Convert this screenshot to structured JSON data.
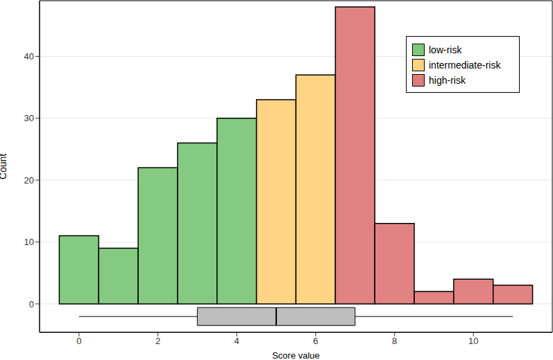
{
  "chart_data": {
    "type": "histogram",
    "xlabel": "Score value",
    "ylabel": "Count",
    "bins": [
      -0.5,
      0.5,
      1.5,
      2.5,
      3.5,
      4.5,
      5.5,
      6.5,
      7.5,
      8.5,
      9.5,
      10.5,
      11.5
    ],
    "series": [
      {
        "name": "low-risk",
        "color": "#7dc87a",
        "values": [
          11,
          9,
          22,
          26,
          30,
          null,
          null,
          null,
          null,
          null,
          null,
          null
        ]
      },
      {
        "name": "intermediate-risk",
        "color": "#ffd27d",
        "values": [
          null,
          null,
          null,
          null,
          null,
          33,
          37,
          null,
          null,
          null,
          null,
          null
        ]
      },
      {
        "name": "high-risk",
        "color": "#e07b7c",
        "values": [
          null,
          null,
          null,
          null,
          null,
          null,
          null,
          48,
          13,
          2,
          4,
          3
        ]
      }
    ],
    "boxplot": {
      "min": 0,
      "q1": 3,
      "median": 5,
      "q3": 7,
      "max": 11
    },
    "xlim": [
      -1,
      12
    ],
    "ylim": [
      -4.6,
      49
    ],
    "xticks": [
      0,
      2,
      4,
      6,
      8,
      10
    ],
    "yticks": [
      0,
      10,
      20,
      30,
      40
    ],
    "grid": true,
    "legend": "upper right"
  }
}
